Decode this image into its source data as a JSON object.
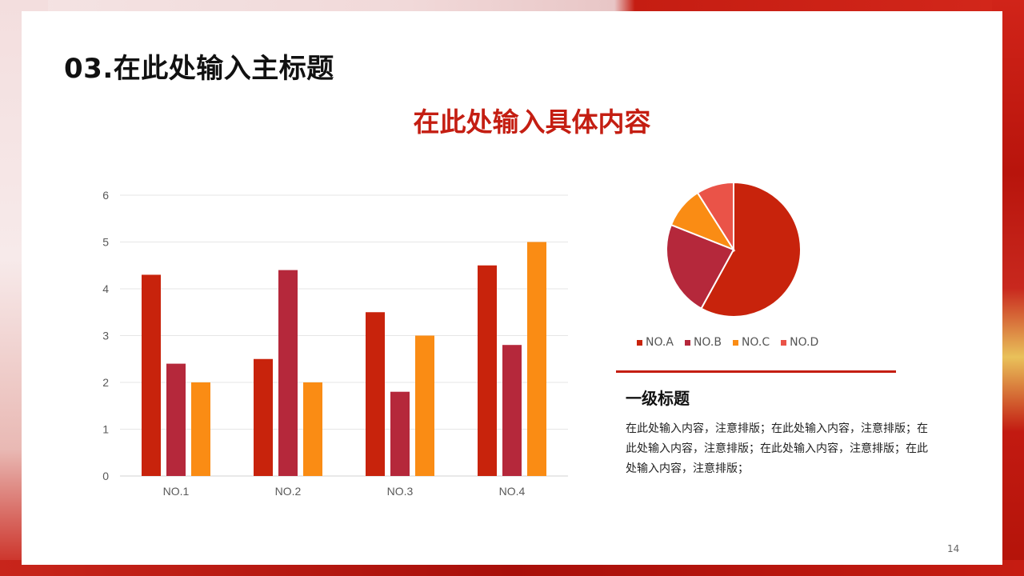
{
  "slide": {
    "title": "03.在此处输入主标题",
    "subtitle": "在此处输入具体内容",
    "section_heading": "一级标题",
    "body_text": "在此处输入内容，注意排版；在此处输入内容，注意排版；在此处输入内容，注意排版；在此处输入内容，注意排版；在此处输入内容，注意排版；",
    "page_number": "14"
  },
  "colors": {
    "accent": "#c41e12",
    "series": [
      "#c8230c",
      "#b5283b",
      "#fa8c14",
      "#ea5348"
    ]
  },
  "chart_data": [
    {
      "type": "bar",
      "categories": [
        "NO.1",
        "NO.2",
        "NO.3",
        "NO.4"
      ],
      "series": [
        {
          "values": [
            4.3,
            2.5,
            3.5,
            4.5
          ]
        },
        {
          "values": [
            2.4,
            4.4,
            1.8,
            2.8
          ]
        },
        {
          "values": [
            2.0,
            2.0,
            3.0,
            5.0
          ]
        }
      ],
      "ylim": [
        0,
        6
      ],
      "yticks": [
        "0",
        "1",
        "2",
        "3",
        "4",
        "5",
        "6"
      ],
      "grid": true,
      "legend": "none"
    },
    {
      "type": "pie",
      "labels": [
        "NO.A",
        "NO.B",
        "NO.C",
        "NO.D"
      ],
      "values": [
        58,
        23,
        10,
        9
      ],
      "legend": "bottom"
    }
  ]
}
